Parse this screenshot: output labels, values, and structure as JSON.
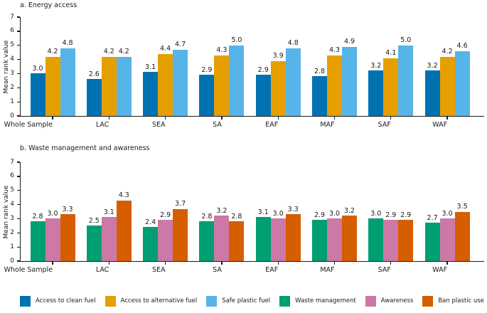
{
  "chart_data": [
    {
      "type": "bar",
      "title": "a. Energy access",
      "ylabel": "Mean rank value",
      "xlabel": "",
      "ylim": [
        0,
        7
      ],
      "yticks": [
        0,
        1,
        2,
        3,
        4,
        5,
        6,
        7
      ],
      "grid": false,
      "value_labels_decimals": 1,
      "categories": [
        "Whole Sample",
        "LAC",
        "SEA",
        "SA",
        "EAF",
        "MAF",
        "SAF",
        "WAF"
      ],
      "series": [
        {
          "name": "Access to clean fuel",
          "color": "#0072B2",
          "values": [
            3.0,
            2.6,
            3.1,
            2.9,
            2.9,
            2.8,
            3.2,
            3.2
          ]
        },
        {
          "name": "Access to alternative fuel",
          "color": "#E69F00",
          "values": [
            4.2,
            4.2,
            4.4,
            4.3,
            3.9,
            4.3,
            4.1,
            4.2
          ]
        },
        {
          "name": "Safe plastic fuel",
          "color": "#56B4E9",
          "values": [
            4.8,
            4.2,
            4.7,
            5.0,
            4.8,
            4.9,
            5.0,
            4.6
          ]
        }
      ]
    },
    {
      "type": "bar",
      "title": "b. Waste management and awareness",
      "ylabel": "Mean rank value",
      "xlabel": "",
      "ylim": [
        0,
        7
      ],
      "yticks": [
        0,
        1,
        2,
        3,
        4,
        5,
        6,
        7
      ],
      "grid": false,
      "value_labels_decimals": 1,
      "categories": [
        "Whole Sample",
        "LAC",
        "SEA",
        "SA",
        "EAF",
        "MAF",
        "SAF",
        "WAF"
      ],
      "series": [
        {
          "name": "Waste management",
          "color": "#009E73",
          "values": [
            2.8,
            2.5,
            2.4,
            2.8,
            3.1,
            2.9,
            3.0,
            2.7
          ]
        },
        {
          "name": "Awareness",
          "color": "#CC79A7",
          "values": [
            3.0,
            3.1,
            2.9,
            3.2,
            3.0,
            3.0,
            2.9,
            3.0
          ]
        },
        {
          "name": "Ban plastic use",
          "color": "#D55E00",
          "values": [
            3.3,
            4.3,
            3.7,
            2.8,
            3.3,
            3.2,
            2.9,
            3.5
          ]
        }
      ]
    }
  ],
  "legend": {
    "position": "bottom",
    "items": [
      {
        "label": "Access to clean fuel",
        "color": "#0072B2"
      },
      {
        "label": "Access to alternative fuel",
        "color": "#E69F00"
      },
      {
        "label": "Safe plastic fuel",
        "color": "#56B4E9"
      },
      {
        "label": "Waste management",
        "color": "#009E73"
      },
      {
        "label": "Awareness",
        "color": "#CC79A7"
      },
      {
        "label": "Ban plastic use",
        "color": "#D55E00"
      }
    ]
  }
}
